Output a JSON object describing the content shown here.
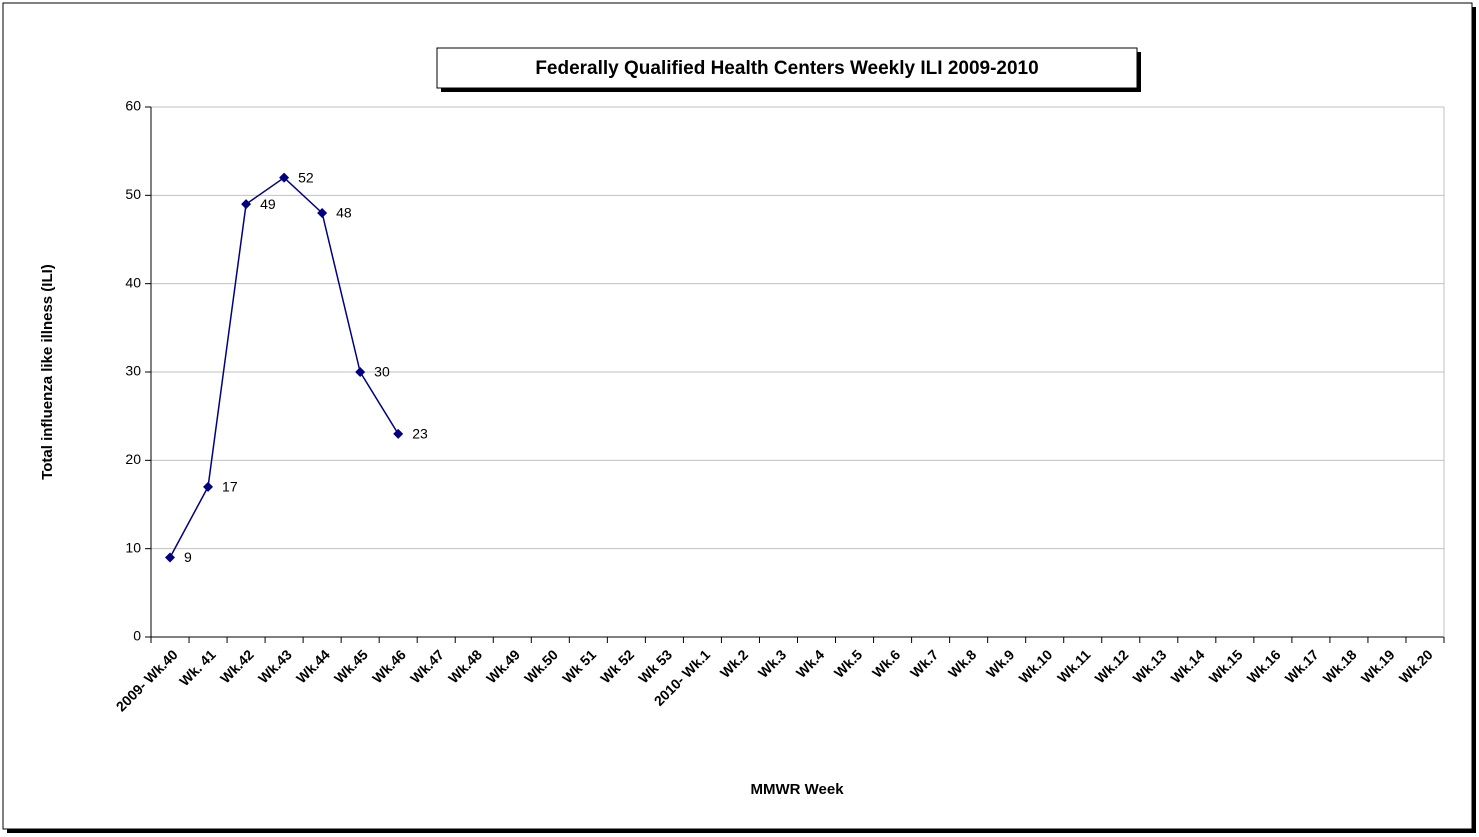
{
  "chart_data": {
    "type": "line",
    "title": "Federally Qualified Health Centers Weekly ILI 2009-2010",
    "x_label": "MMWR Week",
    "y_label": "Total influenza like illness (ILI)",
    "categories": [
      "2009- Wk.40",
      "Wk. 41",
      "Wk.42",
      "Wk.43",
      "Wk.44",
      "Wk.45",
      "Wk.46",
      "Wk.47",
      "Wk.48",
      "Wk.49",
      "Wk.50",
      "Wk 51",
      "Wk 52",
      "Wk 53",
      "2010- Wk.1",
      "Wk.2",
      "Wk.3",
      "Wk.4",
      "Wk.5",
      "Wk.6",
      "Wk.7",
      "Wk.8",
      "Wk.9",
      "Wk.10",
      "Wk.11",
      "Wk.12",
      "Wk.13",
      "Wk.14",
      "Wk.15",
      "Wk.16",
      "Wk.17",
      "Wk.18",
      "Wk.19",
      "Wk.20"
    ],
    "values": [
      9,
      17,
      49,
      52,
      48,
      30,
      23,
      null,
      null,
      null,
      null,
      null,
      null,
      null,
      null,
      null,
      null,
      null,
      null,
      null,
      null,
      null,
      null,
      null,
      null,
      null,
      null,
      null,
      null,
      null,
      null,
      null,
      null,
      null
    ],
    "color": "#000080",
    "ylim": [
      0,
      60
    ],
    "yticks": [
      0,
      10,
      20,
      30,
      40,
      50,
      60
    ],
    "grid": true
  }
}
